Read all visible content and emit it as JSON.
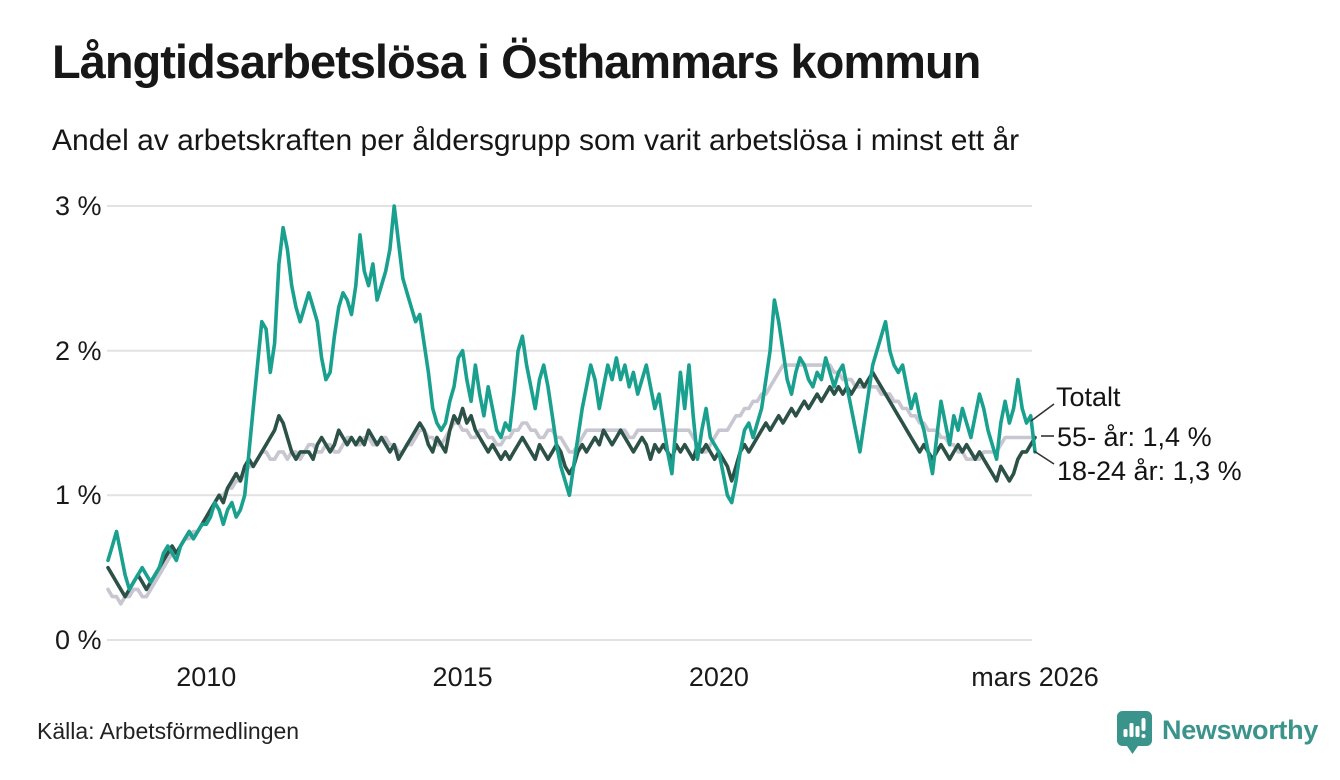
{
  "footer": {
    "source": "Källa: Arbetsförmedlingen",
    "brand": "Newsworthy"
  },
  "colors": {
    "accent_teal": "#1aa08f",
    "dark_green": "#2c5147",
    "light_gray": "#c8c7d1",
    "gridline": "#e2e2e2",
    "leader": "#333333",
    "brand_teal": "#3b948c",
    "text": "#1a1a1a"
  },
  "chart_data": {
    "type": "line",
    "title": "Långtidsarbetslösa i Östhammars kommun",
    "subtitle": "Andel av arbetskraften per åldersgrupp som varit arbetslösa i minst ett år",
    "x_start": "2008-02",
    "x_end": "2026-03",
    "x_interval": "monthly",
    "ylim": [
      0,
      3
    ],
    "grid": "horizontal",
    "legend_position": "right-end-labels",
    "y_ticks": [
      {
        "label": "0 %",
        "value": 0
      },
      {
        "label": "1 %",
        "value": 1
      },
      {
        "label": "2 %",
        "value": 2
      },
      {
        "label": "3 %",
        "value": 3
      }
    ],
    "x_ticks": [
      {
        "label": "2010",
        "index": 23
      },
      {
        "label": "2015",
        "index": 83
      },
      {
        "label": "2020",
        "index": 143
      },
      {
        "label": "mars 2026",
        "index": 217
      }
    ],
    "series": [
      {
        "name": "55- år",
        "end_label": "55- år: 1,4 %",
        "latest_value_label": "1,4 %",
        "color": "#c8c7d1",
        "values": [
          0.35,
          0.3,
          0.3,
          0.25,
          0.3,
          0.3,
          0.35,
          0.35,
          0.3,
          0.3,
          0.35,
          0.4,
          0.45,
          0.5,
          0.55,
          0.6,
          0.6,
          0.65,
          0.7,
          0.7,
          0.75,
          0.75,
          0.8,
          0.85,
          0.9,
          0.95,
          1.0,
          1.0,
          1.05,
          1.05,
          1.1,
          1.1,
          1.15,
          1.2,
          1.2,
          1.25,
          1.3,
          1.3,
          1.25,
          1.25,
          1.3,
          1.3,
          1.25,
          1.3,
          1.3,
          1.25,
          1.3,
          1.35,
          1.35,
          1.3,
          1.3,
          1.35,
          1.35,
          1.3,
          1.3,
          1.35,
          1.4,
          1.4,
          1.35,
          1.35,
          1.4,
          1.4,
          1.35,
          1.35,
          1.4,
          1.4,
          1.35,
          1.35,
          1.3,
          1.3,
          1.35,
          1.35,
          1.4,
          1.45,
          1.45,
          1.4,
          1.4,
          1.35,
          1.35,
          1.4,
          1.45,
          1.5,
          1.5,
          1.45,
          1.45,
          1.4,
          1.4,
          1.45,
          1.45,
          1.4,
          1.4,
          1.35,
          1.35,
          1.4,
          1.4,
          1.45,
          1.45,
          1.5,
          1.5,
          1.45,
          1.45,
          1.4,
          1.4,
          1.45,
          1.45,
          1.4,
          1.4,
          1.35,
          1.3,
          1.3,
          1.35,
          1.4,
          1.45,
          1.45,
          1.45,
          1.45,
          1.45,
          1.45,
          1.45,
          1.45,
          1.45,
          1.45,
          1.4,
          1.4,
          1.45,
          1.45,
          1.45,
          1.45,
          1.45,
          1.45,
          1.45,
          1.45,
          1.45,
          1.45,
          1.45,
          1.45,
          1.45,
          1.4,
          1.35,
          1.3,
          1.3,
          1.35,
          1.4,
          1.45,
          1.45,
          1.45,
          1.5,
          1.55,
          1.55,
          1.6,
          1.6,
          1.65,
          1.65,
          1.7,
          1.7,
          1.75,
          1.8,
          1.85,
          1.9,
          1.9,
          1.9,
          1.9,
          1.9,
          1.9,
          1.9,
          1.9,
          1.9,
          1.9,
          1.9,
          1.9,
          1.85,
          1.85,
          1.8,
          1.8,
          1.8,
          1.75,
          1.75,
          1.75,
          1.75,
          1.75,
          1.75,
          1.7,
          1.7,
          1.7,
          1.65,
          1.65,
          1.6,
          1.6,
          1.55,
          1.55,
          1.5,
          1.5,
          1.45,
          1.45,
          1.45,
          1.4,
          1.4,
          1.35,
          1.35,
          1.3,
          1.3,
          1.25,
          1.25,
          1.25,
          1.25,
          1.3,
          1.3,
          1.3,
          1.3,
          1.35,
          1.4,
          1.4,
          1.4,
          1.4,
          1.4,
          1.4,
          1.4,
          1.4
        ]
      },
      {
        "name": "Totalt",
        "end_label": "Totalt",
        "latest_value_label": "",
        "color": "#2c5147",
        "values": [
          0.5,
          0.45,
          0.4,
          0.35,
          0.3,
          0.35,
          0.4,
          0.45,
          0.4,
          0.35,
          0.4,
          0.45,
          0.5,
          0.55,
          0.6,
          0.65,
          0.6,
          0.65,
          0.7,
          0.75,
          0.7,
          0.75,
          0.8,
          0.85,
          0.9,
          0.95,
          1.0,
          0.95,
          1.05,
          1.1,
          1.15,
          1.1,
          1.2,
          1.25,
          1.2,
          1.25,
          1.3,
          1.35,
          1.4,
          1.45,
          1.55,
          1.5,
          1.4,
          1.3,
          1.25,
          1.3,
          1.3,
          1.3,
          1.25,
          1.35,
          1.4,
          1.35,
          1.3,
          1.35,
          1.45,
          1.4,
          1.35,
          1.4,
          1.35,
          1.4,
          1.35,
          1.45,
          1.4,
          1.35,
          1.4,
          1.35,
          1.3,
          1.35,
          1.25,
          1.3,
          1.35,
          1.4,
          1.45,
          1.5,
          1.45,
          1.35,
          1.3,
          1.4,
          1.35,
          1.3,
          1.45,
          1.55,
          1.5,
          1.6,
          1.5,
          1.55,
          1.45,
          1.4,
          1.35,
          1.3,
          1.35,
          1.3,
          1.25,
          1.3,
          1.25,
          1.3,
          1.35,
          1.4,
          1.35,
          1.3,
          1.25,
          1.35,
          1.3,
          1.25,
          1.3,
          1.35,
          1.3,
          1.2,
          1.15,
          1.2,
          1.3,
          1.35,
          1.3,
          1.35,
          1.4,
          1.35,
          1.45,
          1.4,
          1.35,
          1.4,
          1.45,
          1.4,
          1.35,
          1.3,
          1.35,
          1.4,
          1.35,
          1.25,
          1.35,
          1.3,
          1.35,
          1.3,
          1.25,
          1.35,
          1.3,
          1.35,
          1.3,
          1.25,
          1.35,
          1.3,
          1.35,
          1.3,
          1.25,
          1.3,
          1.25,
          1.2,
          1.1,
          1.2,
          1.3,
          1.35,
          1.3,
          1.35,
          1.4,
          1.45,
          1.5,
          1.45,
          1.5,
          1.55,
          1.5,
          1.55,
          1.6,
          1.55,
          1.6,
          1.65,
          1.6,
          1.65,
          1.7,
          1.65,
          1.7,
          1.75,
          1.7,
          1.75,
          1.7,
          1.75,
          1.7,
          1.75,
          1.8,
          1.75,
          1.8,
          1.85,
          1.8,
          1.75,
          1.7,
          1.65,
          1.6,
          1.55,
          1.5,
          1.45,
          1.4,
          1.35,
          1.3,
          1.35,
          1.3,
          1.25,
          1.3,
          1.35,
          1.3,
          1.25,
          1.3,
          1.35,
          1.3,
          1.35,
          1.3,
          1.25,
          1.3,
          1.25,
          1.2,
          1.15,
          1.1,
          1.2,
          1.15,
          1.1,
          1.15,
          1.25,
          1.3,
          1.3,
          1.35,
          1.4
        ]
      },
      {
        "name": "18-24 år",
        "end_label": "18-24 år: 1,3 %",
        "latest_value_label": "1,3 %",
        "color": "#1aa08f",
        "values": [
          0.55,
          0.65,
          0.75,
          0.6,
          0.45,
          0.35,
          0.4,
          0.45,
          0.5,
          0.45,
          0.4,
          0.45,
          0.5,
          0.6,
          0.65,
          0.6,
          0.55,
          0.65,
          0.7,
          0.75,
          0.7,
          0.75,
          0.8,
          0.8,
          0.85,
          0.95,
          0.9,
          0.8,
          0.9,
          0.95,
          0.85,
          0.9,
          1.0,
          1.3,
          1.6,
          1.9,
          2.2,
          2.15,
          1.85,
          2.05,
          2.6,
          2.85,
          2.7,
          2.45,
          2.3,
          2.2,
          2.3,
          2.4,
          2.3,
          2.2,
          1.95,
          1.8,
          1.85,
          2.1,
          2.3,
          2.4,
          2.35,
          2.25,
          2.45,
          2.8,
          2.55,
          2.45,
          2.6,
          2.35,
          2.45,
          2.55,
          2.7,
          3.0,
          2.75,
          2.5,
          2.4,
          2.3,
          2.2,
          2.25,
          2.05,
          1.85,
          1.6,
          1.5,
          1.45,
          1.5,
          1.65,
          1.75,
          1.95,
          2.0,
          1.8,
          1.65,
          1.9,
          1.7,
          1.55,
          1.75,
          1.6,
          1.45,
          1.4,
          1.5,
          1.45,
          1.7,
          2.0,
          2.1,
          1.9,
          1.75,
          1.6,
          1.8,
          1.9,
          1.75,
          1.55,
          1.35,
          1.2,
          1.1,
          1.0,
          1.2,
          1.4,
          1.6,
          1.75,
          1.9,
          1.8,
          1.6,
          1.75,
          1.9,
          1.8,
          1.95,
          1.8,
          1.9,
          1.75,
          1.85,
          1.7,
          1.8,
          1.9,
          1.75,
          1.6,
          1.7,
          1.5,
          1.3,
          1.15,
          1.5,
          1.85,
          1.6,
          1.9,
          1.55,
          1.25,
          1.45,
          1.6,
          1.4,
          1.35,
          1.3,
          1.15,
          1.0,
          0.95,
          1.1,
          1.3,
          1.45,
          1.5,
          1.4,
          1.5,
          1.6,
          1.8,
          2.0,
          2.35,
          2.2,
          2.0,
          1.8,
          1.7,
          1.85,
          1.95,
          1.9,
          1.8,
          1.75,
          1.85,
          1.8,
          1.95,
          1.85,
          1.75,
          1.85,
          1.9,
          1.75,
          1.6,
          1.45,
          1.3,
          1.5,
          1.7,
          1.9,
          2.0,
          2.1,
          2.2,
          2.0,
          1.9,
          1.85,
          1.9,
          1.75,
          1.6,
          1.7,
          1.55,
          1.45,
          1.3,
          1.15,
          1.4,
          1.65,
          1.5,
          1.35,
          1.55,
          1.45,
          1.6,
          1.5,
          1.4,
          1.55,
          1.7,
          1.6,
          1.45,
          1.35,
          1.25,
          1.5,
          1.65,
          1.5,
          1.6,
          1.8,
          1.6,
          1.5,
          1.55,
          1.3
        ]
      }
    ]
  }
}
